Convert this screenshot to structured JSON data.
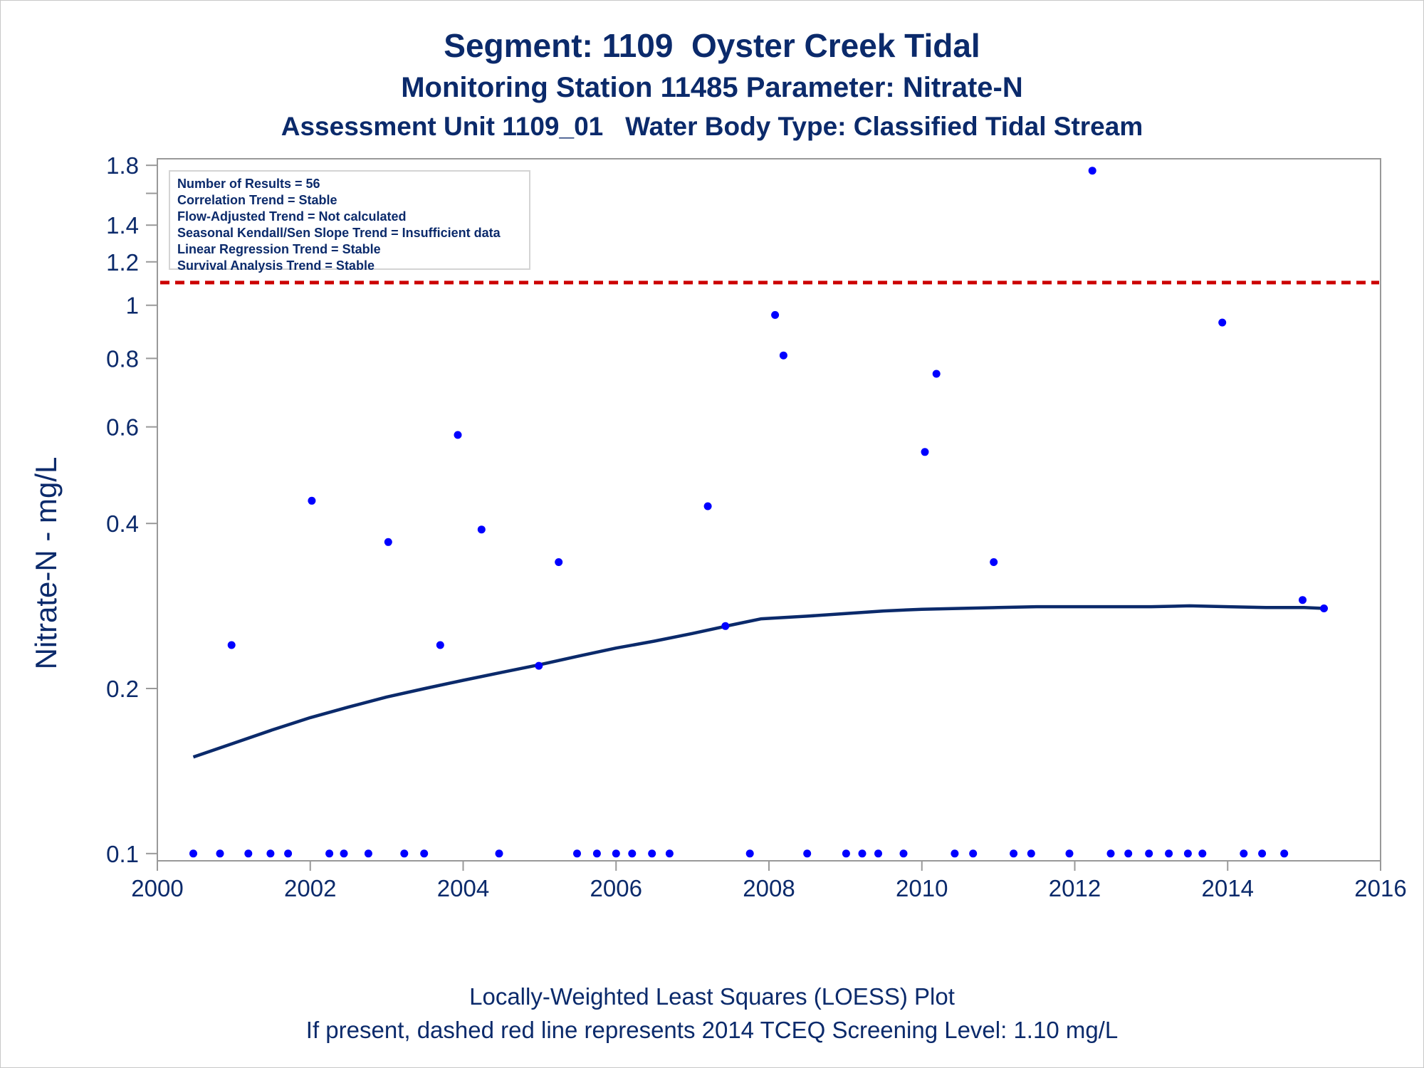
{
  "chart_data": {
    "type": "scatter",
    "title": "Segment: 1109  Oyster Creek Tidal",
    "subtitle": "Monitoring Station 11485 Parameter: Nitrate-N",
    "subtitle2": "Assessment Unit 1109_01   Water Body Type: Classified Tidal Stream",
    "ylabel": "Nitrate-N - mg/L",
    "xlabel": "",
    "footnote1": "Locally-Weighted Least Squares (LOESS) Plot",
    "footnote2": "If present, dashed red line represents 2014 TCEQ Screening Level: 1.10 mg/L",
    "y_scale": "log",
    "xlim": [
      2000,
      2016
    ],
    "ylim": [
      0.097,
      1.85
    ],
    "x_ticks": [
      "2000",
      "2002",
      "2004",
      "2006",
      "2008",
      "2010",
      "2012",
      "2014",
      "2016"
    ],
    "y_ticks": [
      "0.1",
      "0.2",
      "0.4",
      "0.6",
      "0.8",
      "1",
      "1.2",
      "1.4",
      "1.8"
    ],
    "y_minor_ticks": [
      1.6
    ],
    "grid": false,
    "stats_box": [
      "Number of Results = 56",
      "Correlation Trend = Stable",
      "Flow-Adjusted Trend = Not calculated",
      "Seasonal Kendall/Sen Slope Trend = Insufficient data",
      "Linear Regression Trend = Stable",
      "Survival Analysis Trend = Stable"
    ],
    "screening_level": {
      "value": 1.1,
      "style": "dashed",
      "color": "#cc0000"
    },
    "colors": {
      "points": "#0000ff",
      "loess": "#0b2a6b",
      "text": "#0b2a6b",
      "frame": "#999999"
    },
    "series": [
      {
        "kind": "points",
        "x": [
          2000.47,
          2000.82,
          2000.97,
          2001.19,
          2001.48,
          2001.71,
          2002.02,
          2002.25,
          2002.44,
          2002.76,
          2003.02,
          2003.23,
          2003.49,
          2003.7,
          2003.93,
          2004.24,
          2004.47,
          2004.99,
          2005.25,
          2005.49,
          2005.75,
          2006.0,
          2006.21,
          2006.47,
          2006.7,
          2007.2,
          2007.43,
          2007.75,
          2008.08,
          2008.19,
          2008.5,
          2009.01,
          2009.22,
          2009.43,
          2009.76,
          2010.04,
          2010.19,
          2010.43,
          2010.67,
          2010.94,
          2011.2,
          2011.43,
          2011.93,
          2012.23,
          2012.47,
          2012.7,
          2012.97,
          2013.23,
          2013.48,
          2013.67,
          2013.93,
          2014.21,
          2014.45,
          2014.74,
          2014.98,
          2015.26
        ],
        "y": [
          0.1,
          0.1,
          0.24,
          0.1,
          0.1,
          0.1,
          0.44,
          0.1,
          0.1,
          0.1,
          0.37,
          0.1,
          0.1,
          0.24,
          0.58,
          0.39,
          0.1,
          0.22,
          0.34,
          0.1,
          0.1,
          0.1,
          0.1,
          0.1,
          0.1,
          0.43,
          0.26,
          0.1,
          0.96,
          0.81,
          0.1,
          0.1,
          0.1,
          0.1,
          0.1,
          0.54,
          0.75,
          0.1,
          0.1,
          0.34,
          0.1,
          0.1,
          0.1,
          1.76,
          0.1,
          0.1,
          0.1,
          0.1,
          0.1,
          0.1,
          0.93,
          0.1,
          0.1,
          0.1,
          0.29,
          0.28
        ]
      },
      {
        "kind": "loess",
        "x": [
          2000.47,
          2001.0,
          2001.5,
          2002.0,
          2002.5,
          2003.0,
          2003.5,
          2004.0,
          2004.5,
          2005.0,
          2005.5,
          2006.0,
          2006.5,
          2007.0,
          2007.5,
          2007.9,
          2008.5,
          2009.0,
          2009.5,
          2010.0,
          2010.5,
          2011.0,
          2011.5,
          2012.0,
          2012.5,
          2013.0,
          2013.5,
          2014.0,
          2014.5,
          2015.0,
          2015.26
        ],
        "y": [
          0.15,
          0.159,
          0.168,
          0.177,
          0.185,
          0.193,
          0.2,
          0.207,
          0.214,
          0.221,
          0.229,
          0.237,
          0.244,
          0.252,
          0.261,
          0.268,
          0.271,
          0.274,
          0.277,
          0.279,
          0.28,
          0.281,
          0.282,
          0.282,
          0.282,
          0.282,
          0.283,
          0.282,
          0.281,
          0.281,
          0.28
        ]
      }
    ]
  }
}
